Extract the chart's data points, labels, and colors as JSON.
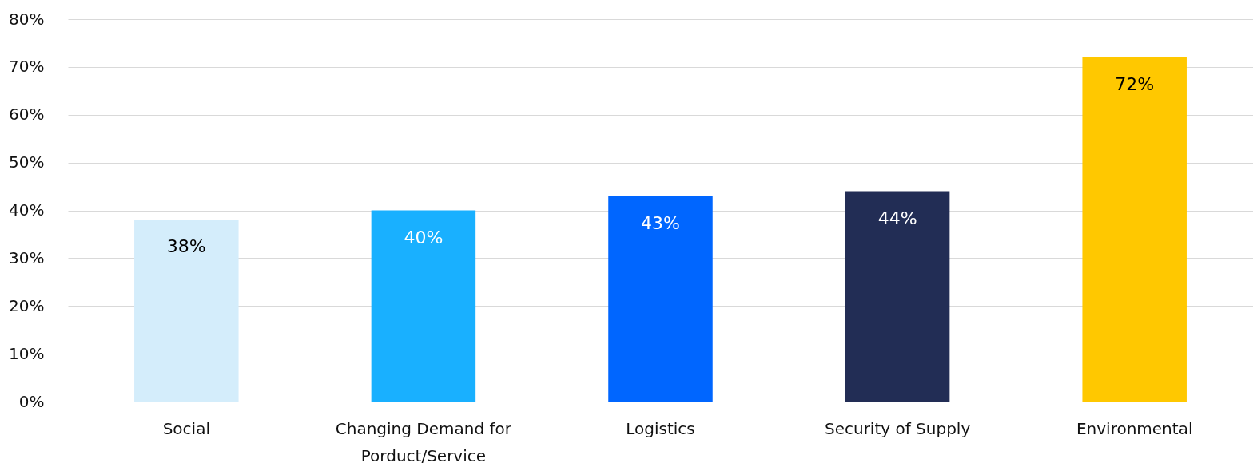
{
  "chart_data": {
    "type": "bar",
    "categories": [
      "Social",
      "Changing Demand for Porduct/Service",
      "Logistics",
      "Security of Supply",
      "Environmental"
    ],
    "values": [
      38,
      40,
      43,
      44,
      72
    ],
    "colors": [
      "#d4edfb",
      "#19b0ff",
      "#0066ff",
      "#222d55",
      "#ffc800"
    ],
    "ylim": [
      0,
      80
    ],
    "yticks": [
      {
        "value": 0,
        "label": "0%"
      },
      {
        "value": 10,
        "label": "10%"
      },
      {
        "value": 20,
        "label": "20%"
      },
      {
        "value": 30,
        "label": "30%"
      },
      {
        "value": 40,
        "label": "40%"
      },
      {
        "value": 50,
        "label": "50%"
      },
      {
        "value": 60,
        "label": "60%"
      },
      {
        "value": 70,
        "label": "70%"
      },
      {
        "value": 80,
        "label": "80%"
      }
    ],
    "value_labels": [
      "38%",
      "40%",
      "43%",
      "44%",
      "72%"
    ],
    "grid": "y"
  }
}
